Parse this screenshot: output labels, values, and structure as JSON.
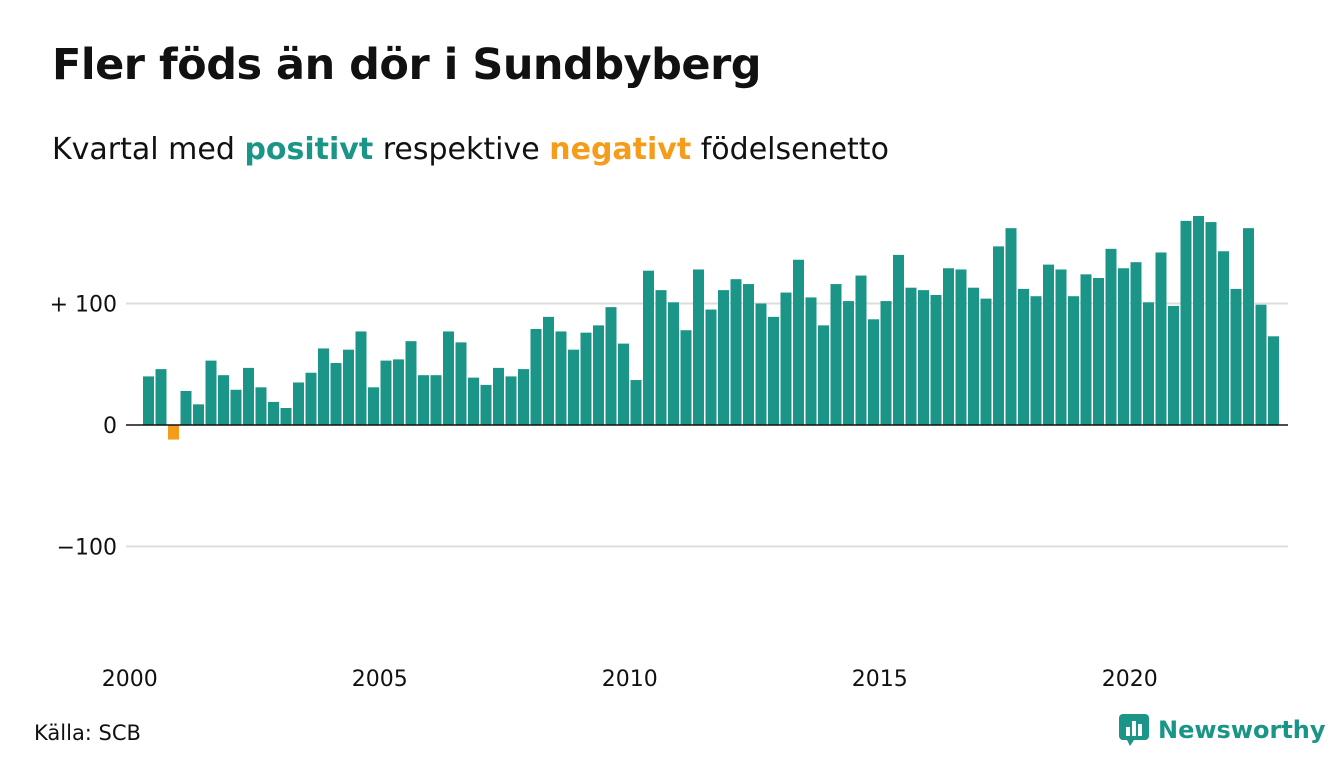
{
  "title": "Fler föds än dör i Sundbyberg",
  "subtitle": {
    "before": "Kvartal med",
    "positive": "positivt",
    "middle": "respektive",
    "negative": "negativt",
    "after": "födelsenetto"
  },
  "source": "Källa: SCB",
  "brand": "Newsworthy",
  "colors": {
    "positive": "#1a9587",
    "negative": "#f59c1a",
    "grid": "#dddddd",
    "axis": "#111111"
  },
  "chart_data": {
    "type": "bar",
    "title": "Fler föds än dör i Sundbyberg",
    "subtitle": "Kvartal med positivt respektive negativt födelsenetto",
    "x_start": "2000 Q1",
    "frequency": "quarterly",
    "xticks": [
      "2000",
      "2005",
      "2010",
      "2015",
      "2020"
    ],
    "yticks": [
      100,
      0,
      -100
    ],
    "ytick_labels": [
      "+ 100",
      "0",
      "−100"
    ],
    "ylim": [
      -190,
      190
    ],
    "grid": true,
    "values": [
      0,
      40,
      46,
      -12,
      28,
      17,
      53,
      41,
      29,
      47,
      31,
      19,
      14,
      35,
      43,
      63,
      51,
      62,
      77,
      31,
      53,
      54,
      69,
      41,
      41,
      77,
      68,
      39,
      33,
      47,
      40,
      46,
      79,
      89,
      77,
      62,
      76,
      82,
      97,
      67,
      37,
      127,
      111,
      101,
      78,
      128,
      95,
      111,
      120,
      116,
      100,
      89,
      109,
      136,
      105,
      82,
      116,
      102,
      123,
      87,
      102,
      140,
      113,
      111,
      107,
      129,
      128,
      113,
      104,
      147,
      162,
      112,
      106,
      132,
      128,
      106,
      124,
      121,
      145,
      129,
      134,
      101,
      142,
      98,
      168,
      172,
      167,
      143,
      112,
      162,
      99,
      73
    ]
  }
}
